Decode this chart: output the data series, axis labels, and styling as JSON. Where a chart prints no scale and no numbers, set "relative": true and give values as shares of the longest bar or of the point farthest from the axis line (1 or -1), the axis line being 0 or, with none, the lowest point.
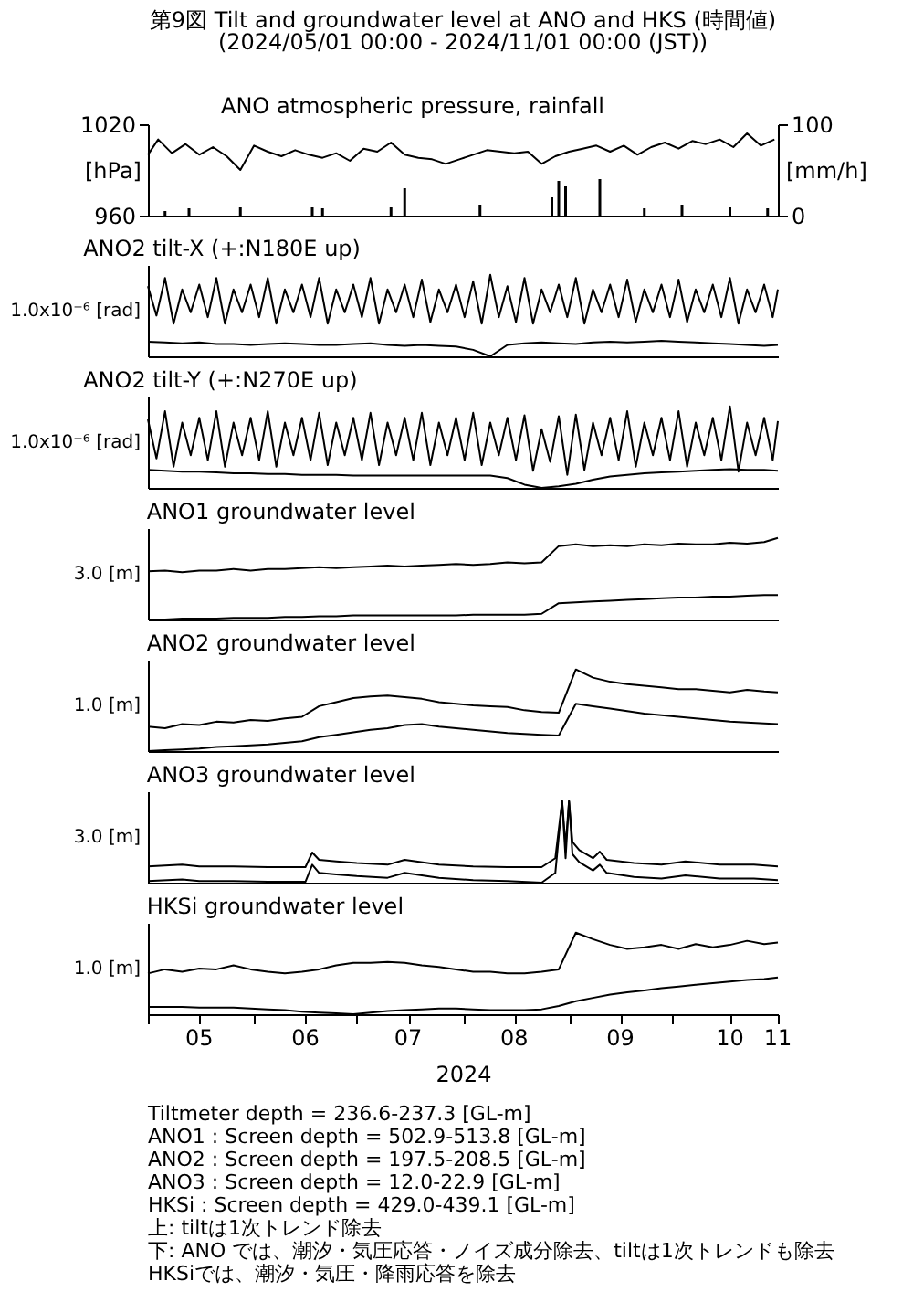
{
  "chart_data": [
    {
      "type": "line",
      "title": "第9図 Tilt and groundwater level at ANO and HKS (時間値)",
      "subtitle": "(2024/05/01 00:00 - 2024/11/01 00:00 (JST))",
      "annotations": [
        "ANO atmospheric pressure, rainfall"
      ],
      "ylabel": "[hPa]",
      "y2label": "[mm/h]",
      "xlim": [
        "2024-05-01",
        "2024-11-01"
      ],
      "ylim": [
        960,
        1020
      ],
      "yticks": [
        960,
        1020
      ],
      "y2lim": [
        0,
        100
      ],
      "y2ticks": [
        0,
        100
      ],
      "tick_labels": "y",
      "series": [
        {
          "color": "#000000",
          "x": [
            "2024-05-01",
            "2024-05-04",
            "2024-05-08",
            "2024-05-12",
            "2024-05-16",
            "2024-05-20",
            "2024-05-24",
            "2024-05-28",
            "2024-06-01",
            "2024-06-05",
            "2024-06-09",
            "2024-06-13",
            "2024-06-17",
            "2024-06-21",
            "2024-06-25",
            "2024-06-29",
            "2024-07-03",
            "2024-07-07",
            "2024-07-11",
            "2024-07-15",
            "2024-07-19",
            "2024-07-23",
            "2024-07-27",
            "2024-07-31",
            "2024-08-04",
            "2024-08-08",
            "2024-08-12",
            "2024-08-16",
            "2024-08-20",
            "2024-08-24",
            "2024-08-28",
            "2024-09-01",
            "2024-09-05",
            "2024-09-09",
            "2024-09-13",
            "2024-09-17",
            "2024-09-21",
            "2024-09-25",
            "2024-09-29",
            "2024-10-03",
            "2024-10-07",
            "2024-10-11",
            "2024-10-15",
            "2024-10-19",
            "2024-10-23",
            "2024-10-27",
            "2024-10-31"
          ],
          "values": [
            1000,
            1010,
            1001,
            1007,
            1000,
            1005,
            999,
            990,
            1006,
            1002,
            999,
            1003,
            1000,
            998,
            1001,
            996,
            1004,
            1002,
            1008,
            1000,
            998,
            997,
            994,
            997,
            1000,
            1003,
            1002,
            1001,
            1002,
            994,
            999,
            1002,
            1004,
            1006,
            1002,
            1006,
            1000,
            1005,
            1008,
            1004,
            1009,
            1007,
            1010,
            1005,
            1014,
            1006,
            1010
          ]
        },
        {
          "type": "bar",
          "axis": "y2",
          "color": "#000000",
          "x": [
            "2024-05-06",
            "2024-05-13",
            "2024-05-28",
            "2024-06-18",
            "2024-06-21",
            "2024-07-11",
            "2024-07-15",
            "2024-08-06",
            "2024-08-27",
            "2024-08-29",
            "2024-08-31",
            "2024-09-10",
            "2024-09-23",
            "2024-10-04",
            "2024-10-18",
            "2024-10-29"
          ],
          "values": [
            5,
            8,
            10,
            10,
            8,
            10,
            30,
            12,
            20,
            38,
            32,
            40,
            8,
            12,
            10,
            8
          ]
        }
      ]
    },
    {
      "type": "line",
      "title": "ANO2 tilt-X (+:N180E up)",
      "ylabel": "1.0x10⁻⁶ [rad]",
      "relative": true,
      "xlim": [
        "2024-05-01",
        "2024-11-01"
      ],
      "tick_labels": false,
      "x": [
        "2024-05-01",
        "2024-05-06",
        "2024-05-11",
        "2024-05-16",
        "2024-05-21",
        "2024-05-26",
        "2024-05-31",
        "2024-06-05",
        "2024-06-10",
        "2024-06-15",
        "2024-06-20",
        "2024-06-25",
        "2024-06-30",
        "2024-07-05",
        "2024-07-10",
        "2024-07-15",
        "2024-07-20",
        "2024-07-25",
        "2024-07-30",
        "2024-08-04",
        "2024-08-09",
        "2024-08-14",
        "2024-08-19",
        "2024-08-24",
        "2024-08-29",
        "2024-09-03",
        "2024-09-08",
        "2024-09-13",
        "2024-09-18",
        "2024-09-23",
        "2024-09-28",
        "2024-10-03",
        "2024-10-08",
        "2024-10-13",
        "2024-10-18",
        "2024-10-23",
        "2024-10-28",
        "2024-11-01"
      ],
      "series": [
        {
          "color": "#000000",
          "x": [
            "2024-05-01",
            "2024-05-03T12:00",
            "2024-05-06",
            "2024-05-08T12:00",
            "2024-05-11",
            "2024-05-13T12:00",
            "2024-05-16",
            "2024-05-18T12:00",
            "2024-05-21",
            "2024-05-23T12:00",
            "2024-05-26",
            "2024-05-28T12:00",
            "2024-05-31",
            "2024-06-02T12:00",
            "2024-06-05",
            "2024-06-07T12:00",
            "2024-06-10",
            "2024-06-12T12:00",
            "2024-06-15",
            "2024-06-17T12:00",
            "2024-06-20",
            "2024-06-22T12:00",
            "2024-06-25",
            "2024-06-27T12:00",
            "2024-06-30",
            "2024-07-02T12:00",
            "2024-07-05",
            "2024-07-07T12:00",
            "2024-07-10",
            "2024-07-12T12:00",
            "2024-07-15",
            "2024-07-17T12:00",
            "2024-07-20",
            "2024-07-22T12:00",
            "2024-07-25",
            "2024-07-27T12:00",
            "2024-07-30",
            "2024-08-01T12:00",
            "2024-08-04",
            "2024-08-06T12:00",
            "2024-08-09",
            "2024-08-11T12:00",
            "2024-08-14",
            "2024-08-16T12:00",
            "2024-08-19",
            "2024-08-21T12:00",
            "2024-08-24",
            "2024-08-26T12:00",
            "2024-08-29",
            "2024-08-31T12:00",
            "2024-09-03",
            "2024-09-05T12:00",
            "2024-09-08",
            "2024-09-10T12:00",
            "2024-09-13",
            "2024-09-15T12:00",
            "2024-09-18",
            "2024-09-20T12:00",
            "2024-09-23",
            "2024-09-25T12:00",
            "2024-09-28",
            "2024-09-30T12:00",
            "2024-10-03",
            "2024-10-05T12:00",
            "2024-10-08",
            "2024-10-10T12:00",
            "2024-10-13",
            "2024-10-15T12:00",
            "2024-10-18",
            "2024-10-20T12:00",
            "2024-10-23",
            "2024-10-25T12:00",
            "2024-10-28",
            "2024-10-30T12:00",
            "2024-11-01"
          ],
          "values": [
            0.86,
            0.5,
            0.96,
            0.4,
            0.82,
            0.54,
            0.88,
            0.48,
            0.96,
            0.4,
            0.82,
            0.54,
            0.88,
            0.48,
            0.96,
            0.4,
            0.82,
            0.54,
            0.88,
            0.48,
            0.96,
            0.4,
            0.82,
            0.54,
            0.88,
            0.48,
            0.96,
            0.4,
            0.82,
            0.54,
            0.88,
            0.48,
            0.94,
            0.42,
            0.82,
            0.54,
            0.88,
            0.48,
            0.92,
            0.4,
            1.0,
            0.48,
            0.86,
            0.42,
            0.96,
            0.4,
            0.82,
            0.54,
            0.88,
            0.48,
            0.96,
            0.4,
            0.82,
            0.54,
            0.88,
            0.48,
            0.94,
            0.42,
            0.82,
            0.54,
            0.88,
            0.48,
            0.94,
            0.42,
            0.82,
            0.54,
            0.88,
            0.48,
            0.96,
            0.4,
            0.82,
            0.54,
            0.88,
            0.48,
            0.82
          ]
        },
        {
          "color": "#000000",
          "values": [
            0.18,
            0.17,
            0.16,
            0.17,
            0.15,
            0.15,
            0.14,
            0.15,
            0.16,
            0.15,
            0.14,
            0.14,
            0.15,
            0.16,
            0.14,
            0.13,
            0.14,
            0.13,
            0.12,
            0.08,
            0,
            0.14,
            0.16,
            0.17,
            0.16,
            0.15,
            0.17,
            0.18,
            0.17,
            0.18,
            0.19,
            0.18,
            0.17,
            0.16,
            0.15,
            0.14,
            0.13,
            0.14
          ]
        }
      ]
    },
    {
      "type": "line",
      "title": "ANO2 tilt-Y (+:N270E up)",
      "ylabel": "1.0x10⁻⁶ [rad]",
      "relative": true,
      "xlim": [
        "2024-05-01",
        "2024-11-01"
      ],
      "tick_labels": false,
      "x": [
        "2024-05-01",
        "2024-05-06",
        "2024-05-11",
        "2024-05-16",
        "2024-05-21",
        "2024-05-26",
        "2024-05-31",
        "2024-06-05",
        "2024-06-10",
        "2024-06-15",
        "2024-06-20",
        "2024-06-25",
        "2024-06-30",
        "2024-07-05",
        "2024-07-10",
        "2024-07-15",
        "2024-07-20",
        "2024-07-25",
        "2024-07-30",
        "2024-08-04",
        "2024-08-09",
        "2024-08-14",
        "2024-08-19",
        "2024-08-24",
        "2024-08-29",
        "2024-09-03",
        "2024-09-08",
        "2024-09-13",
        "2024-09-18",
        "2024-09-23",
        "2024-09-28",
        "2024-10-03",
        "2024-10-08",
        "2024-10-13",
        "2024-10-18",
        "2024-10-23",
        "2024-10-28",
        "2024-11-01"
      ],
      "series": [
        {
          "color": "#000000",
          "x": [
            "2024-05-01",
            "2024-05-03T12:00",
            "2024-05-06",
            "2024-05-08T12:00",
            "2024-05-11",
            "2024-05-13T12:00",
            "2024-05-16",
            "2024-05-18T12:00",
            "2024-05-21",
            "2024-05-23T12:00",
            "2024-05-26",
            "2024-05-28T12:00",
            "2024-05-31",
            "2024-06-02T12:00",
            "2024-06-05",
            "2024-06-07T12:00",
            "2024-06-10",
            "2024-06-12T12:00",
            "2024-06-15",
            "2024-06-17T12:00",
            "2024-06-20",
            "2024-06-22T12:00",
            "2024-06-25",
            "2024-06-27T12:00",
            "2024-06-30",
            "2024-07-02T12:00",
            "2024-07-05",
            "2024-07-07T12:00",
            "2024-07-10",
            "2024-07-12T12:00",
            "2024-07-15",
            "2024-07-17T12:00",
            "2024-07-20",
            "2024-07-22T12:00",
            "2024-07-25",
            "2024-07-27T12:00",
            "2024-07-30",
            "2024-08-01T12:00",
            "2024-08-04",
            "2024-08-06T12:00",
            "2024-08-09",
            "2024-08-11T12:00",
            "2024-08-14",
            "2024-08-16T12:00",
            "2024-08-19",
            "2024-08-21T12:00",
            "2024-08-24",
            "2024-08-26T12:00",
            "2024-08-29",
            "2024-08-31T12:00",
            "2024-09-03",
            "2024-09-05T12:00",
            "2024-09-08",
            "2024-09-10T12:00",
            "2024-09-13",
            "2024-09-15T12:00",
            "2024-09-18",
            "2024-09-20T12:00",
            "2024-09-23",
            "2024-09-25T12:00",
            "2024-09-28",
            "2024-09-30T12:00",
            "2024-10-03",
            "2024-10-05T12:00",
            "2024-10-08",
            "2024-10-10T12:00",
            "2024-10-13",
            "2024-10-15T12:00",
            "2024-10-18",
            "2024-10-20T12:00",
            "2024-10-23",
            "2024-10-25T12:00",
            "2024-10-28",
            "2024-10-30T12:00",
            "2024-11-01"
          ],
          "values": [
            0.84,
            0.36,
            0.94,
            0.26,
            0.8,
            0.4,
            0.86,
            0.34,
            0.94,
            0.26,
            0.8,
            0.4,
            0.86,
            0.34,
            0.94,
            0.26,
            0.8,
            0.4,
            0.86,
            0.34,
            0.92,
            0.28,
            0.8,
            0.4,
            0.86,
            0.34,
            0.92,
            0.28,
            0.8,
            0.4,
            0.86,
            0.34,
            0.92,
            0.28,
            0.8,
            0.4,
            0.86,
            0.34,
            0.92,
            0.28,
            0.8,
            0.4,
            0.86,
            0.34,
            0.89,
            0.21,
            0.72,
            0.32,
            0.88,
            0.16,
            0.9,
            0.22,
            0.8,
            0.4,
            0.86,
            0.34,
            0.94,
            0.26,
            0.8,
            0.4,
            0.86,
            0.34,
            0.94,
            0.26,
            0.8,
            0.4,
            0.86,
            0.34,
            1.0,
            0.2,
            0.8,
            0.4,
            0.86,
            0.34,
            0.82
          ]
        },
        {
          "color": "#000000",
          "values": [
            0.22,
            0.21,
            0.2,
            0.2,
            0.19,
            0.18,
            0.18,
            0.17,
            0.17,
            0.16,
            0.16,
            0.16,
            0.15,
            0.15,
            0.15,
            0.15,
            0.15,
            0.15,
            0.15,
            0.15,
            0.15,
            0.12,
            0.04,
            0,
            0.02,
            0.05,
            0.1,
            0.14,
            0.16,
            0.18,
            0.19,
            0.2,
            0.21,
            0.22,
            0.23,
            0.22,
            0.22,
            0.21
          ]
        }
      ]
    },
    {
      "type": "line",
      "title": "ANO1 groundwater level",
      "ylabel": "3.0 [m]",
      "relative": true,
      "xlim": [
        "2024-05-01",
        "2024-11-01"
      ],
      "tick_labels": false,
      "x": [
        "2024-05-01",
        "2024-05-06",
        "2024-05-11",
        "2024-05-16",
        "2024-05-21",
        "2024-05-26",
        "2024-05-31",
        "2024-06-05",
        "2024-06-10",
        "2024-06-15",
        "2024-06-20",
        "2024-06-25",
        "2024-06-30",
        "2024-07-05",
        "2024-07-10",
        "2024-07-15",
        "2024-07-20",
        "2024-07-25",
        "2024-07-30",
        "2024-08-04",
        "2024-08-09",
        "2024-08-14",
        "2024-08-19",
        "2024-08-24",
        "2024-08-29",
        "2024-09-03",
        "2024-09-08",
        "2024-09-13",
        "2024-09-18",
        "2024-09-23",
        "2024-09-28",
        "2024-10-03",
        "2024-10-08",
        "2024-10-13",
        "2024-10-18",
        "2024-10-23",
        "2024-10-28",
        "2024-11-01"
      ],
      "series": [
        {
          "color": "#000000",
          "values": [
            0.59,
            0.6,
            0.58,
            0.6,
            0.6,
            0.62,
            0.6,
            0.62,
            0.62,
            0.63,
            0.64,
            0.63,
            0.64,
            0.65,
            0.66,
            0.65,
            0.66,
            0.67,
            0.68,
            0.67,
            0.68,
            0.7,
            0.69,
            0.7,
            0.9,
            0.92,
            0.9,
            0.91,
            0.9,
            0.92,
            0.91,
            0.93,
            0.92,
            0.92,
            0.94,
            0.93,
            0.95,
            1.0
          ]
        },
        {
          "color": "#000000",
          "values": [
            0,
            0,
            0.01,
            0.01,
            0.01,
            0.02,
            0.02,
            0.02,
            0.03,
            0.03,
            0.04,
            0.04,
            0.05,
            0.05,
            0.05,
            0.05,
            0.05,
            0.05,
            0.05,
            0.06,
            0.06,
            0.06,
            0.06,
            0.07,
            0.2,
            0.21,
            0.22,
            0.23,
            0.24,
            0.25,
            0.26,
            0.27,
            0.27,
            0.28,
            0.28,
            0.29,
            0.3,
            0.3
          ]
        }
      ]
    },
    {
      "type": "line",
      "title": "ANO2 groundwater level",
      "ylabel": "1.0 [m]",
      "relative": true,
      "xlim": [
        "2024-05-01",
        "2024-11-01"
      ],
      "tick_labels": false,
      "x": [
        "2024-05-01",
        "2024-05-06",
        "2024-05-11",
        "2024-05-16",
        "2024-05-21",
        "2024-05-26",
        "2024-05-31",
        "2024-06-05",
        "2024-06-10",
        "2024-06-15",
        "2024-06-20",
        "2024-06-25",
        "2024-06-30",
        "2024-07-05",
        "2024-07-10",
        "2024-07-15",
        "2024-07-20",
        "2024-07-25",
        "2024-07-30",
        "2024-08-04",
        "2024-08-09",
        "2024-08-14",
        "2024-08-19",
        "2024-08-24",
        "2024-08-29",
        "2024-09-03",
        "2024-09-08",
        "2024-09-13",
        "2024-09-18",
        "2024-09-23",
        "2024-09-28",
        "2024-10-03",
        "2024-10-08",
        "2024-10-13",
        "2024-10-18",
        "2024-10-23",
        "2024-10-28",
        "2024-11-01"
      ],
      "series": [
        {
          "color": "#000000",
          "values": [
            0.3,
            0.28,
            0.33,
            0.32,
            0.36,
            0.35,
            0.38,
            0.37,
            0.4,
            0.42,
            0.55,
            0.6,
            0.65,
            0.67,
            0.68,
            0.66,
            0.64,
            0.6,
            0.58,
            0.56,
            0.55,
            0.54,
            0.5,
            0.48,
            0.47,
            1.0,
            0.9,
            0.85,
            0.82,
            0.8,
            0.78,
            0.76,
            0.76,
            0.74,
            0.72,
            0.75,
            0.73,
            0.72
          ]
        },
        {
          "color": "#000000",
          "values": [
            0,
            0.01,
            0.02,
            0.03,
            0.05,
            0.06,
            0.07,
            0.08,
            0.1,
            0.12,
            0.17,
            0.2,
            0.23,
            0.26,
            0.28,
            0.32,
            0.33,
            0.3,
            0.28,
            0.26,
            0.24,
            0.22,
            0.21,
            0.2,
            0.19,
            0.58,
            0.55,
            0.52,
            0.49,
            0.46,
            0.44,
            0.42,
            0.4,
            0.38,
            0.36,
            0.35,
            0.34,
            0.33
          ]
        }
      ]
    },
    {
      "type": "line",
      "title": "ANO3 groundwater level",
      "ylabel": "3.0 [m]",
      "relative": true,
      "xlim": [
        "2024-05-01",
        "2024-11-01"
      ],
      "tick_labels": false,
      "x": [
        "2024-05-01",
        "2024-05-11",
        "2024-05-16",
        "2024-05-26",
        "2024-06-05",
        "2024-06-16",
        "2024-06-18",
        "2024-06-20",
        "2024-06-25",
        "2024-07-01",
        "2024-07-10",
        "2024-07-15",
        "2024-07-25",
        "2024-08-04",
        "2024-08-14",
        "2024-08-24",
        "2024-08-28",
        "2024-08-30",
        "2024-08-31",
        "2024-09-01",
        "2024-09-02",
        "2024-09-04",
        "2024-09-08",
        "2024-09-10",
        "2024-09-12",
        "2024-09-20",
        "2024-09-28",
        "2024-10-05",
        "2024-10-15",
        "2024-10-25",
        "2024-11-01"
      ],
      "series": [
        {
          "color": "#000000",
          "values": [
            0.2,
            0.22,
            0.2,
            0.2,
            0.19,
            0.19,
            0.37,
            0.28,
            0.26,
            0.24,
            0.22,
            0.28,
            0.22,
            0.2,
            0.19,
            0.19,
            0.3,
            1.0,
            0.45,
            1.0,
            0.5,
            0.4,
            0.3,
            0.38,
            0.28,
            0.24,
            0.22,
            0.26,
            0.22,
            0.22,
            0.2
          ]
        },
        {
          "color": "#000000",
          "values": [
            0.02,
            0.04,
            0.02,
            0.02,
            0.01,
            0.01,
            0.22,
            0.12,
            0.1,
            0.08,
            0.06,
            0.12,
            0.06,
            0.03,
            0.02,
            0,
            0.12,
            1.0,
            0.3,
            1.0,
            0.35,
            0.25,
            0.15,
            0.22,
            0.12,
            0.07,
            0.05,
            0.09,
            0.05,
            0.05,
            0.03
          ]
        }
      ]
    },
    {
      "type": "line",
      "title": "HKSi groundwater level",
      "ylabel": "1.0 [m]",
      "relative": true,
      "xlabel": "2024",
      "xlim": [
        "2024-05-01",
        "2024-11-01"
      ],
      "tick_labels": "x",
      "xticks": [
        {
          "value": "2024-05-01",
          "label": null
        },
        {
          "value": "2024-05-16",
          "label": "05"
        },
        {
          "value": "2024-06-01",
          "label": null
        },
        {
          "value": "2024-06-16",
          "label": "06"
        },
        {
          "value": "2024-07-01",
          "label": null
        },
        {
          "value": "2024-07-16",
          "label": "07"
        },
        {
          "value": "2024-08-01",
          "label": null
        },
        {
          "value": "2024-08-16",
          "label": "08"
        },
        {
          "value": "2024-09-01",
          "label": null
        },
        {
          "value": "2024-09-16",
          "label": "09"
        },
        {
          "value": "2024-10-01",
          "label": null
        },
        {
          "value": "2024-10-18",
          "label": "10"
        },
        {
          "value": "2024-11-01",
          "label": "11"
        }
      ],
      "annotations": [
        "Tiltmeter depth = 236.6-237.3 [GL-m]",
        "ANO1 : Screen depth = 502.9-513.8 [GL-m]",
        "ANO2 : Screen depth = 197.5-208.5 [GL-m]",
        "ANO3 : Screen depth = 12.0-22.9 [GL-m]",
        "HKSi : Screen depth = 429.0-439.1 [GL-m]",
        "上: tiltは1次トレンド除去",
        "下: ANO では、潮汐・気圧応答・ノイズ成分除去、tiltは1次トレンドも除去",
        "HKSiでは、潮汐・気圧・降雨応答を除去"
      ],
      "x": [
        "2024-05-01",
        "2024-05-06",
        "2024-05-11",
        "2024-05-16",
        "2024-05-21",
        "2024-05-26",
        "2024-05-31",
        "2024-06-05",
        "2024-06-10",
        "2024-06-15",
        "2024-06-20",
        "2024-06-25",
        "2024-06-30",
        "2024-07-05",
        "2024-07-10",
        "2024-07-15",
        "2024-07-20",
        "2024-07-25",
        "2024-07-30",
        "2024-08-04",
        "2024-08-09",
        "2024-08-14",
        "2024-08-19",
        "2024-08-24",
        "2024-08-29",
        "2024-09-03",
        "2024-09-08",
        "2024-09-13",
        "2024-09-18",
        "2024-09-23",
        "2024-09-28",
        "2024-10-03",
        "2024-10-08",
        "2024-10-13",
        "2024-10-18",
        "2024-10-23",
        "2024-10-28",
        "2024-11-01"
      ],
      "series": [
        {
          "color": "#000000",
          "values": [
            0.5,
            0.55,
            0.52,
            0.56,
            0.55,
            0.6,
            0.55,
            0.52,
            0.5,
            0.52,
            0.55,
            0.6,
            0.63,
            0.63,
            0.64,
            0.63,
            0.6,
            0.58,
            0.55,
            0.52,
            0.52,
            0.5,
            0.5,
            0.52,
            0.55,
            1.0,
            0.92,
            0.85,
            0.8,
            0.82,
            0.85,
            0.8,
            0.86,
            0.82,
            0.85,
            0.9,
            0.86,
            0.88
          ]
        },
        {
          "color": "#000000",
          "values": [
            0.09,
            0.09,
            0.09,
            0.08,
            0.08,
            0.08,
            0.07,
            0.06,
            0.05,
            0.03,
            0.02,
            0.01,
            0,
            0.02,
            0.04,
            0.05,
            0.06,
            0.07,
            0.07,
            0.06,
            0.05,
            0.05,
            0.05,
            0.06,
            0.1,
            0.16,
            0.2,
            0.24,
            0.27,
            0.29,
            0.32,
            0.34,
            0.36,
            0.38,
            0.4,
            0.42,
            0.43,
            0.45
          ]
        }
      ]
    }
  ]
}
